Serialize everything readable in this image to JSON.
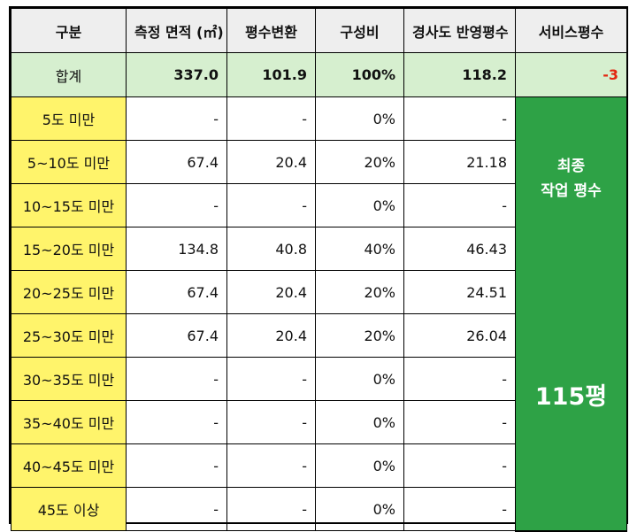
{
  "headers": [
    "구분",
    "측정 면적 (㎡)",
    "평수변환",
    "구성비",
    "경사도 반영평수",
    "서비스평수"
  ],
  "total": {
    "label": "합계",
    "area": "337.0",
    "pyeong": "101.9",
    "ratio": "100%",
    "adjusted": "118.2",
    "service": "-3"
  },
  "rows": [
    {
      "category": "5도 미만",
      "area": "-",
      "pyeong": "-",
      "ratio": "0%",
      "adjusted": "-"
    },
    {
      "category": "5~10도 미만",
      "area": "67.4",
      "pyeong": "20.4",
      "ratio": "20%",
      "adjusted": "21.18"
    },
    {
      "category": "10~15도 미만",
      "area": "-",
      "pyeong": "-",
      "ratio": "0%",
      "adjusted": "-"
    },
    {
      "category": "15~20도 미만",
      "area": "134.8",
      "pyeong": "40.8",
      "ratio": "40%",
      "adjusted": "46.43"
    },
    {
      "category": "20~25도 미만",
      "area": "67.4",
      "pyeong": "20.4",
      "ratio": "20%",
      "adjusted": "24.51"
    },
    {
      "category": "25~30도 미만",
      "area": "67.4",
      "pyeong": "20.4",
      "ratio": "20%",
      "adjusted": "26.04"
    },
    {
      "category": "30~35도 미만",
      "area": "-",
      "pyeong": "-",
      "ratio": "0%",
      "adjusted": "-"
    },
    {
      "category": "35~40도 미만",
      "area": "-",
      "pyeong": "-",
      "ratio": "0%",
      "adjusted": "-"
    },
    {
      "category": "40~45도 미만",
      "area": "-",
      "pyeong": "-",
      "ratio": "0%",
      "adjusted": "-"
    },
    {
      "category": "45도 이상",
      "area": "-",
      "pyeong": "-",
      "ratio": "0%",
      "adjusted": "-"
    }
  ],
  "service_panel": {
    "title_line1": "최종",
    "title_line2": "작업 평수",
    "value": "115평"
  },
  "colors": {
    "header_bg": "#eeeeee",
    "total_bg": "#d6efcf",
    "category_bg": "#fff46b",
    "service_bg": "#2ea246",
    "negative_text": "#e3260f"
  }
}
